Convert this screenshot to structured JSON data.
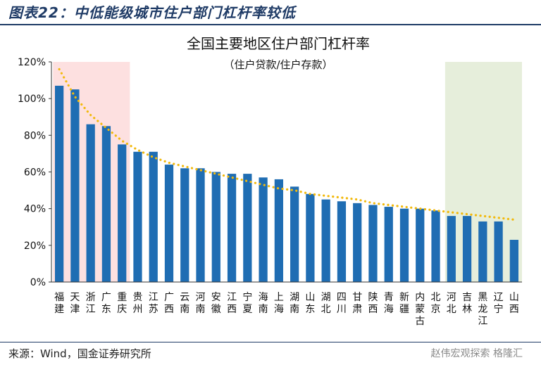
{
  "figure_title": "图表22：中低能级城市住户部门杠杆率较低",
  "source": "来源：Wind，国金证券研究所",
  "watermark": "赵伟宏观探索  格隆汇",
  "colors": {
    "bar": "#1f6db3",
    "trend": "#f2b90c",
    "high_band": "#fde0e0",
    "low_band": "#e6eedb",
    "header": "#1f3b66"
  },
  "chart_data": {
    "type": "bar",
    "title": "全国主要地区住户部门杠杆率",
    "subtitle": "（住户贷款/住户存款）",
    "xlabel": "",
    "ylabel": "",
    "ylim": [
      0,
      120
    ],
    "yticks": [
      "0%",
      "20%",
      "40%",
      "60%",
      "80%",
      "100%",
      "120%"
    ],
    "grid": false,
    "highlight_bands": [
      {
        "name": "high",
        "from_index": 0,
        "to_index": 4
      },
      {
        "name": "low",
        "from_index": 25,
        "to_index": 29
      }
    ],
    "categories": [
      "福建",
      "天津",
      "浙江",
      "广东",
      "重庆",
      "贵州",
      "江苏",
      "广西",
      "云南",
      "河南",
      "安徽",
      "江西",
      "宁夏",
      "海南",
      "上海",
      "湖南",
      "山东",
      "湖北",
      "四川",
      "甘肃",
      "陕西",
      "青海",
      "新疆",
      "内蒙古",
      "北京",
      "河北",
      "吉林",
      "黑龙江",
      "辽宁",
      "山西"
    ],
    "values": [
      107,
      105,
      86,
      85,
      75,
      71,
      71,
      64,
      62,
      62,
      60,
      59,
      59,
      57,
      56,
      52,
      48,
      45,
      44,
      43,
      42,
      41,
      40,
      40,
      39,
      36,
      36,
      33,
      33,
      23
    ],
    "trendline": [
      116,
      101,
      91,
      84,
      77,
      72,
      68,
      65,
      63,
      61,
      59,
      57,
      55,
      53,
      51,
      50,
      48,
      47,
      46,
      45,
      43,
      42,
      41,
      40,
      39,
      38,
      37,
      36,
      35,
      34
    ]
  }
}
